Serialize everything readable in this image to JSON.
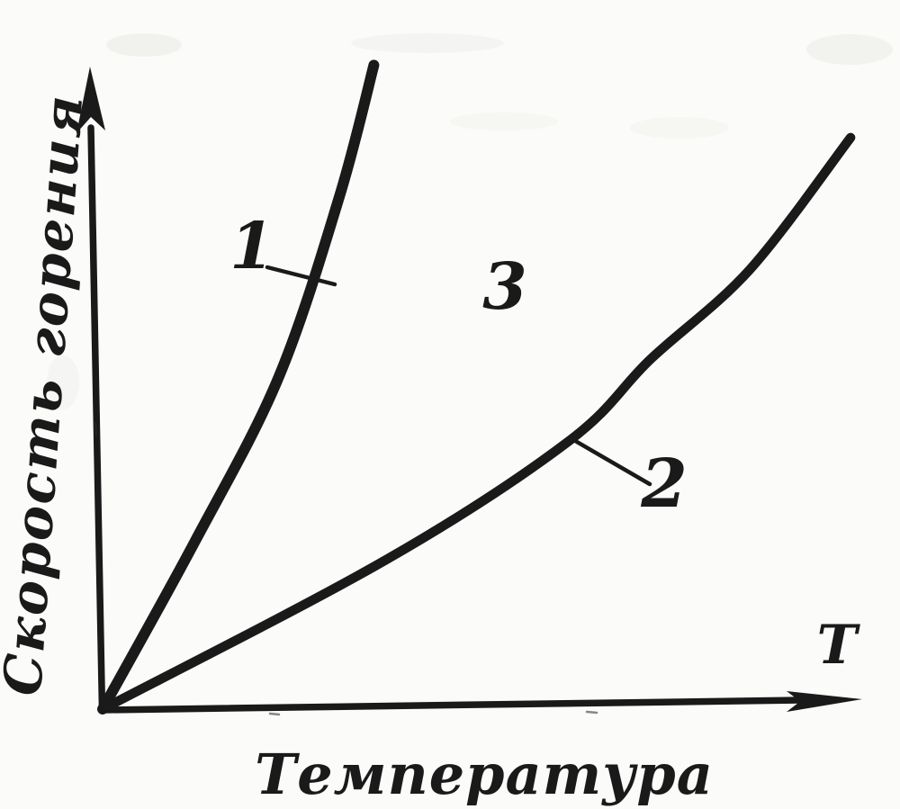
{
  "figure": {
    "ink_color": "#1a1a1a",
    "paper_color": "#fbfbf9",
    "style": "scanned halftone book figure, hand-drawn ink"
  },
  "chart_data": {
    "type": "line",
    "title": "",
    "xlabel": "Температура",
    "ylabel": "Скорость горения",
    "x_axis_arrow_symbol": "Т",
    "axes": {
      "ticks": "none",
      "grid": false,
      "arrows": true,
      "x_range_relative": [
        0,
        10
      ],
      "y_range_relative": [
        0,
        10
      ]
    },
    "legend_position": "none",
    "series": [
      {
        "name": "curve 1",
        "label": "1",
        "x": [
          0,
          1.22,
          2.32,
          3.12,
          3.58
        ],
        "y": [
          0,
          2.62,
          5.17,
          7.98,
          10.05
        ]
      },
      {
        "name": "curve 2",
        "label": "2",
        "x": [
          0,
          3.74,
          6.16,
          7.23,
          8.54,
          9.87
        ],
        "y": [
          0,
          2.33,
          4.19,
          5.46,
          6.86,
          8.92
        ]
      }
    ],
    "annotations": [
      {
        "label": "3",
        "type": "region-label",
        "position_relative": {
          "x": 5.3,
          "y": 6.6
        }
      }
    ]
  }
}
